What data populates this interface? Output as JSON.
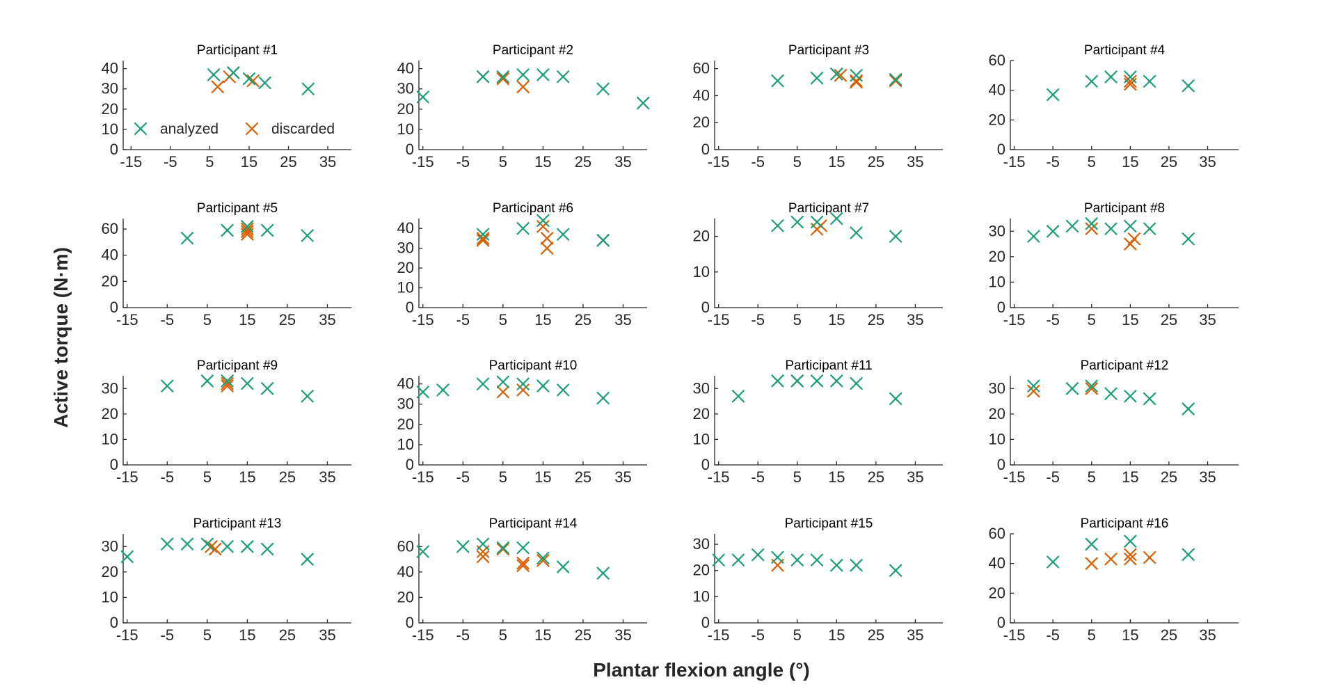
{
  "figure": {
    "xlabel": "Plantar flexion angle (°)",
    "ylabel": "Active torque (N·m)"
  },
  "legend": {
    "placement": "bottom-left of first panel",
    "items": [
      {
        "label": "analyzed",
        "series": "analyzed"
      },
      {
        "label": "discarded",
        "series": "discarded"
      }
    ]
  },
  "colors": {
    "analyzed": "#1b9e77",
    "discarded": "#d95f02",
    "axis": "#262626"
  },
  "chart_data": [
    {
      "type": "scatter",
      "title": "Participant #1",
      "xlim": [
        -17,
        41
      ],
      "xticks": [
        -15,
        -5,
        5,
        15,
        25,
        35
      ],
      "ylim": [
        0,
        44
      ],
      "yticks": [
        0,
        10,
        20,
        30,
        40
      ],
      "series": [
        {
          "name": "analyzed",
          "points": [
            [
              6,
              37
            ],
            [
              11,
              38
            ],
            [
              15,
              35
            ],
            [
              19,
              33
            ],
            [
              30,
              30
            ]
          ]
        },
        {
          "name": "discarded",
          "points": [
            [
              7,
              31
            ],
            [
              10,
              36
            ],
            [
              11,
              38
            ],
            [
              16,
              34
            ]
          ]
        }
      ]
    },
    {
      "type": "scatter",
      "title": "Participant #2",
      "xlim": [
        -16,
        41
      ],
      "xticks": [
        -15,
        -5,
        5,
        15,
        25,
        35
      ],
      "ylim": [
        0,
        44
      ],
      "yticks": [
        0,
        10,
        20,
        30,
        40
      ],
      "series": [
        {
          "name": "analyzed",
          "points": [
            [
              -15,
              26
            ],
            [
              0,
              36
            ],
            [
              5,
              36
            ],
            [
              10,
              37
            ],
            [
              15,
              37
            ],
            [
              20,
              36
            ],
            [
              30,
              30
            ],
            [
              40,
              23
            ]
          ]
        },
        {
          "name": "discarded",
          "points": [
            [
              0,
              36
            ],
            [
              5,
              35
            ],
            [
              10,
              31
            ],
            [
              40,
              23
            ]
          ]
        }
      ]
    },
    {
      "type": "scatter",
      "title": "Participant #3",
      "xlim": [
        -16,
        42
      ],
      "xticks": [
        -15,
        -5,
        5,
        15,
        25,
        35
      ],
      "ylim": [
        0,
        66
      ],
      "yticks": [
        0,
        20,
        40,
        60
      ],
      "series": [
        {
          "name": "analyzed",
          "points": [
            [
              0,
              51
            ],
            [
              10,
              53
            ],
            [
              15,
              56
            ],
            [
              20,
              55
            ],
            [
              30,
              52
            ]
          ]
        },
        {
          "name": "discarded",
          "points": [
            [
              15,
              56
            ],
            [
              16,
              55
            ],
            [
              20,
              51
            ],
            [
              20,
              50
            ],
            [
              30,
              51
            ]
          ]
        }
      ]
    },
    {
      "type": "scatter",
      "title": "Participant #4",
      "xlim": [
        -16,
        43
      ],
      "xticks": [
        -15,
        -5,
        5,
        15,
        25,
        35
      ],
      "ylim": [
        0,
        60
      ],
      "yticks": [
        0,
        20,
        40,
        60
      ],
      "series": [
        {
          "name": "analyzed",
          "points": [
            [
              -5,
              37
            ],
            [
              5,
              46
            ],
            [
              10,
              49
            ],
            [
              15,
              49
            ],
            [
              20,
              46
            ],
            [
              30,
              43
            ]
          ]
        },
        {
          "name": "discarded",
          "points": [
            [
              15,
              44
            ],
            [
              15,
              46
            ]
          ]
        }
      ]
    },
    {
      "type": "scatter",
      "title": "Participant #5",
      "xlim": [
        -16,
        41
      ],
      "xticks": [
        -15,
        -5,
        5,
        15,
        25,
        35
      ],
      "ylim": [
        0,
        68
      ],
      "yticks": [
        0,
        20,
        40,
        60
      ],
      "series": [
        {
          "name": "analyzed",
          "points": [
            [
              0,
              53
            ],
            [
              10,
              59
            ],
            [
              15,
              62
            ],
            [
              20,
              59
            ],
            [
              30,
              55
            ]
          ]
        },
        {
          "name": "discarded",
          "points": [
            [
              15,
              56
            ],
            [
              15,
              58
            ],
            [
              15,
              60
            ]
          ]
        }
      ]
    },
    {
      "type": "scatter",
      "title": "Participant #6",
      "xlim": [
        -16,
        41
      ],
      "xticks": [
        -15,
        -5,
        5,
        15,
        25,
        35
      ],
      "ylim": [
        0,
        45
      ],
      "yticks": [
        0,
        10,
        20,
        30,
        40
      ],
      "series": [
        {
          "name": "analyzed",
          "points": [
            [
              0,
              37
            ],
            [
              10,
              40
            ],
            [
              15,
              44
            ],
            [
              20,
              37
            ],
            [
              30,
              34
            ]
          ]
        },
        {
          "name": "discarded",
          "points": [
            [
              0,
              34
            ],
            [
              0,
              35
            ],
            [
              15,
              41
            ],
            [
              16,
              35
            ],
            [
              16,
              30
            ],
            [
              30,
              34
            ]
          ]
        }
      ]
    },
    {
      "type": "scatter",
      "title": "Participant #7",
      "xlim": [
        -16,
        42
      ],
      "xticks": [
        -15,
        -5,
        5,
        15,
        25,
        35
      ],
      "ylim": [
        0,
        25
      ],
      "yticks": [
        0,
        10,
        20
      ],
      "series": [
        {
          "name": "analyzed",
          "points": [
            [
              0,
              23
            ],
            [
              5,
              24
            ],
            [
              10,
              24
            ],
            [
              15,
              25
            ],
            [
              20,
              21
            ],
            [
              30,
              20
            ]
          ]
        },
        {
          "name": "discarded",
          "points": [
            [
              10,
              22
            ],
            [
              11,
              23
            ]
          ]
        }
      ]
    },
    {
      "type": "scatter",
      "title": "Participant #8",
      "xlim": [
        -16,
        43
      ],
      "xticks": [
        -15,
        -5,
        5,
        15,
        25,
        35
      ],
      "ylim": [
        0,
        35
      ],
      "yticks": [
        0,
        10,
        20,
        30
      ],
      "series": [
        {
          "name": "analyzed",
          "points": [
            [
              -10,
              28
            ],
            [
              -5,
              30
            ],
            [
              0,
              32
            ],
            [
              5,
              33
            ],
            [
              10,
              31
            ],
            [
              15,
              32
            ],
            [
              20,
              31
            ],
            [
              30,
              27
            ]
          ]
        },
        {
          "name": "discarded",
          "points": [
            [
              5,
              31
            ],
            [
              15,
              25
            ],
            [
              16,
              27
            ]
          ]
        }
      ]
    },
    {
      "type": "scatter",
      "title": "Participant #9",
      "xlim": [
        -16,
        41
      ],
      "xticks": [
        -15,
        -5,
        5,
        15,
        25,
        35
      ],
      "ylim": [
        0,
        35
      ],
      "yticks": [
        0,
        10,
        20,
        30
      ],
      "series": [
        {
          "name": "analyzed",
          "points": [
            [
              -5,
              31
            ],
            [
              5,
              33
            ],
            [
              10,
              33
            ],
            [
              15,
              32
            ],
            [
              20,
              30
            ],
            [
              30,
              27
            ]
          ]
        },
        {
          "name": "discarded",
          "points": [
            [
              10,
              31
            ],
            [
              10,
              32
            ]
          ]
        }
      ]
    },
    {
      "type": "scatter",
      "title": "Participant #10",
      "xlim": [
        -16,
        41
      ],
      "xticks": [
        -15,
        -5,
        5,
        15,
        25,
        35
      ],
      "ylim": [
        0,
        44
      ],
      "yticks": [
        0,
        10,
        20,
        30,
        40
      ],
      "series": [
        {
          "name": "analyzed",
          "points": [
            [
              -15,
              36
            ],
            [
              -10,
              37
            ],
            [
              0,
              40
            ],
            [
              5,
              41
            ],
            [
              10,
              40
            ],
            [
              15,
              39
            ],
            [
              20,
              37
            ],
            [
              30,
              33
            ]
          ]
        },
        {
          "name": "discarded",
          "points": [
            [
              5,
              36
            ],
            [
              10,
              37
            ]
          ]
        }
      ]
    },
    {
      "type": "scatter",
      "title": "Participant #11",
      "xlim": [
        -16,
        42
      ],
      "xticks": [
        -15,
        -5,
        5,
        15,
        25,
        35
      ],
      "ylim": [
        0,
        35
      ],
      "yticks": [
        0,
        10,
        20,
        30
      ],
      "series": [
        {
          "name": "analyzed",
          "points": [
            [
              -10,
              27
            ],
            [
              0,
              33
            ],
            [
              5,
              33
            ],
            [
              10,
              33
            ],
            [
              15,
              33
            ],
            [
              20,
              32
            ],
            [
              30,
              26
            ]
          ]
        },
        {
          "name": "discarded",
          "points": [
            [
              5,
              33
            ]
          ]
        }
      ]
    },
    {
      "type": "scatter",
      "title": "Participant #12",
      "xlim": [
        -16,
        43
      ],
      "xticks": [
        -15,
        -5,
        5,
        15,
        25,
        35
      ],
      "ylim": [
        0,
        35
      ],
      "yticks": [
        0,
        10,
        20,
        30
      ],
      "series": [
        {
          "name": "analyzed",
          "points": [
            [
              -10,
              31
            ],
            [
              0,
              30
            ],
            [
              5,
              31
            ],
            [
              10,
              28
            ],
            [
              15,
              27
            ],
            [
              20,
              26
            ],
            [
              30,
              22
            ]
          ]
        },
        {
          "name": "discarded",
          "points": [
            [
              -10,
              29
            ],
            [
              5,
              30
            ]
          ]
        }
      ]
    },
    {
      "type": "scatter",
      "title": "Participant #13",
      "xlim": [
        -16,
        41
      ],
      "xticks": [
        -15,
        -5,
        5,
        15,
        25,
        35
      ],
      "ylim": [
        0,
        35
      ],
      "yticks": [
        0,
        10,
        20,
        30
      ],
      "series": [
        {
          "name": "analyzed",
          "points": [
            [
              -15,
              26
            ],
            [
              -5,
              31
            ],
            [
              0,
              31
            ],
            [
              5,
              31
            ],
            [
              10,
              30
            ],
            [
              15,
              30
            ],
            [
              20,
              29
            ],
            [
              30,
              25
            ]
          ]
        },
        {
          "name": "discarded",
          "points": [
            [
              6,
              30
            ],
            [
              7,
              29
            ]
          ]
        }
      ]
    },
    {
      "type": "scatter",
      "title": "Participant #14",
      "xlim": [
        -16,
        41
      ],
      "xticks": [
        -15,
        -5,
        5,
        15,
        25,
        35
      ],
      "ylim": [
        0,
        70
      ],
      "yticks": [
        0,
        20,
        40,
        60
      ],
      "series": [
        {
          "name": "analyzed",
          "points": [
            [
              -15,
              56
            ],
            [
              -5,
              60
            ],
            [
              0,
              62
            ],
            [
              5,
              59
            ],
            [
              10,
              59
            ],
            [
              15,
              51
            ],
            [
              20,
              44
            ],
            [
              30,
              39
            ]
          ]
        },
        {
          "name": "discarded",
          "points": [
            [
              0,
              52
            ],
            [
              0,
              56
            ],
            [
              5,
              58
            ],
            [
              10,
              45
            ],
            [
              10,
              47
            ],
            [
              15,
              49
            ]
          ]
        }
      ]
    },
    {
      "type": "scatter",
      "title": "Participant #15",
      "xlim": [
        -16,
        42
      ],
      "xticks": [
        -15,
        -5,
        5,
        15,
        25,
        35
      ],
      "ylim": [
        0,
        34
      ],
      "yticks": [
        0,
        10,
        20,
        30
      ],
      "series": [
        {
          "name": "analyzed",
          "points": [
            [
              -15,
              24
            ],
            [
              -10,
              24
            ],
            [
              -5,
              26
            ],
            [
              0,
              25
            ],
            [
              5,
              24
            ],
            [
              10,
              24
            ],
            [
              15,
              22
            ],
            [
              20,
              22
            ],
            [
              30,
              20
            ]
          ]
        },
        {
          "name": "discarded",
          "points": [
            [
              0,
              22
            ]
          ]
        }
      ]
    },
    {
      "type": "scatter",
      "title": "Participant #16",
      "xlim": [
        -16,
        43
      ],
      "xticks": [
        -15,
        -5,
        5,
        15,
        25,
        35
      ],
      "ylim": [
        0,
        60
      ],
      "yticks": [
        0,
        20,
        40,
        60
      ],
      "series": [
        {
          "name": "analyzed",
          "points": [
            [
              -5,
              41
            ],
            [
              5,
              53
            ],
            [
              15,
              55
            ],
            [
              30,
              46
            ]
          ]
        },
        {
          "name": "discarded",
          "points": [
            [
              5,
              40
            ],
            [
              10,
              43
            ],
            [
              15,
              43
            ],
            [
              15,
              46
            ],
            [
              20,
              44
            ]
          ]
        }
      ]
    }
  ]
}
